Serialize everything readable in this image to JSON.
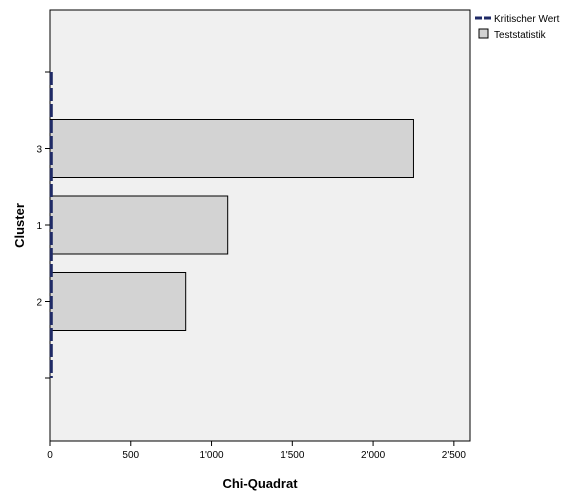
{
  "chart_data": {
    "type": "bar",
    "orientation": "horizontal",
    "categories": [
      "3",
      "1",
      "2"
    ],
    "series": [
      {
        "name": "Teststatistik",
        "values": [
          2250,
          1100,
          840
        ],
        "color": "#d3d3d3"
      }
    ],
    "reference_line": {
      "name": "Kritischer Wert",
      "value": 8,
      "style": "dashed",
      "color": "#1f2a66"
    },
    "xlabel": "Chi-Quadrat",
    "ylabel": "Cluster",
    "xlim": [
      0,
      2600
    ],
    "xticks": [
      0,
      500,
      1000,
      1500,
      2000,
      2500
    ],
    "xtick_labels": [
      "0",
      "500",
      "1'000",
      "1'500",
      "2'000",
      "2'500"
    ],
    "legend_position": "top-right",
    "plot_background": "#f0f0f0"
  }
}
